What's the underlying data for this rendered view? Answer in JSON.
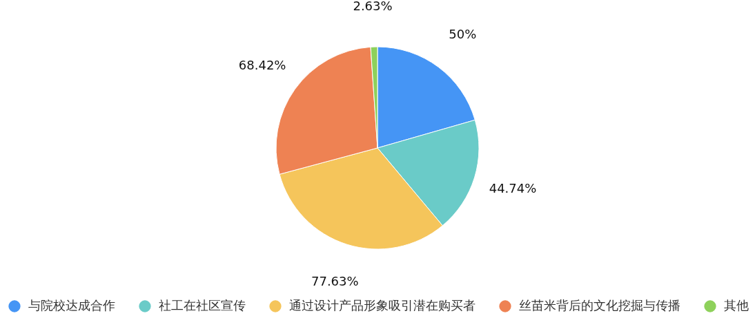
{
  "chart_data": {
    "type": "pie",
    "categories": [
      "与院校达成合作",
      "社工在社区宣传",
      "通过设计产品形象吸引潜在购买者",
      "丝苗米背后的文化挖掘与传播",
      "其他"
    ],
    "values": [
      50,
      44.74,
      77.63,
      68.42,
      2.63
    ],
    "value_labels": [
      "50%",
      "44.74%",
      "77.63%",
      "68.42%",
      "2.63%"
    ],
    "colors": [
      "#4595f5",
      "#6acbc8",
      "#f5c55b",
      "#ee8253",
      "#8ed15b"
    ],
    "legend": "bottom"
  }
}
